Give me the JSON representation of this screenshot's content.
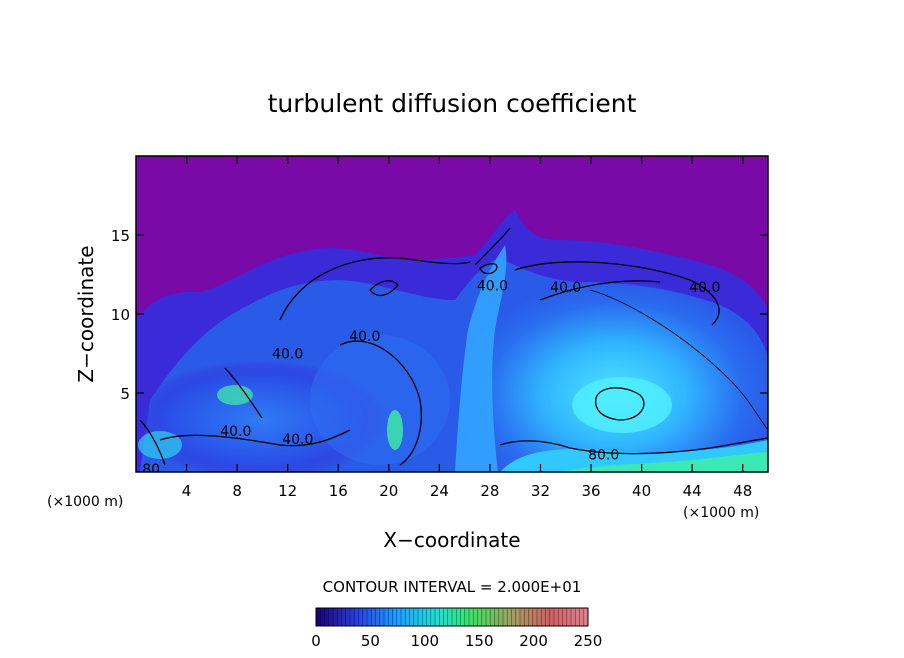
{
  "chart_data": {
    "type": "heatmap",
    "title": "turbulent diffusion coefficient",
    "xlabel": "X−coordinate",
    "ylabel": "Z−coordinate",
    "x_unit_left": "(×1000 m)",
    "x_unit_right": "(×1000 m)",
    "xlim": [
      0,
      50
    ],
    "ylim": [
      0,
      20
    ],
    "x_ticks": [
      4,
      8,
      12,
      16,
      20,
      24,
      28,
      32,
      36,
      40,
      44,
      48
    ],
    "y_ticks": [
      5,
      10,
      15
    ],
    "contour_interval_text": "CONTOUR INTERVAL = 2.000E+01",
    "contour_labels": [
      {
        "text": "40.0",
        "x": 12.0,
        "y": 7.5
      },
      {
        "text": "40.0",
        "x": 18.1,
        "y": 8.6
      },
      {
        "text": "40.0",
        "x": 28.2,
        "y": 11.8
      },
      {
        "text": "40.0",
        "x": 34.0,
        "y": 11.7
      },
      {
        "text": "40.0",
        "x": 45.0,
        "y": 11.7
      },
      {
        "text": "40.0",
        "x": 7.9,
        "y": 2.6
      },
      {
        "text": "40.0",
        "x": 12.8,
        "y": 2.1
      },
      {
        "text": "80.0",
        "x": 37.0,
        "y": 1.1
      },
      {
        "text": "80",
        "x": 1.2,
        "y": 0.2
      }
    ],
    "colorbar": {
      "min": 0,
      "max": 250,
      "tick_labels": [
        "0",
        "50",
        "100",
        "150",
        "200",
        "250"
      ],
      "colors": [
        "#1a0070",
        "#2a3fe0",
        "#1ea0ff",
        "#20e0d0",
        "#40e060",
        "#a0a060",
        "#d06060",
        "#e08090"
      ]
    },
    "field_colors": {
      "background": "#7a0aa8",
      "low": "#3a1fd6",
      "mid": "#2a6cf0",
      "high": "#30d0ff",
      "peak": "#30ffb0"
    }
  }
}
